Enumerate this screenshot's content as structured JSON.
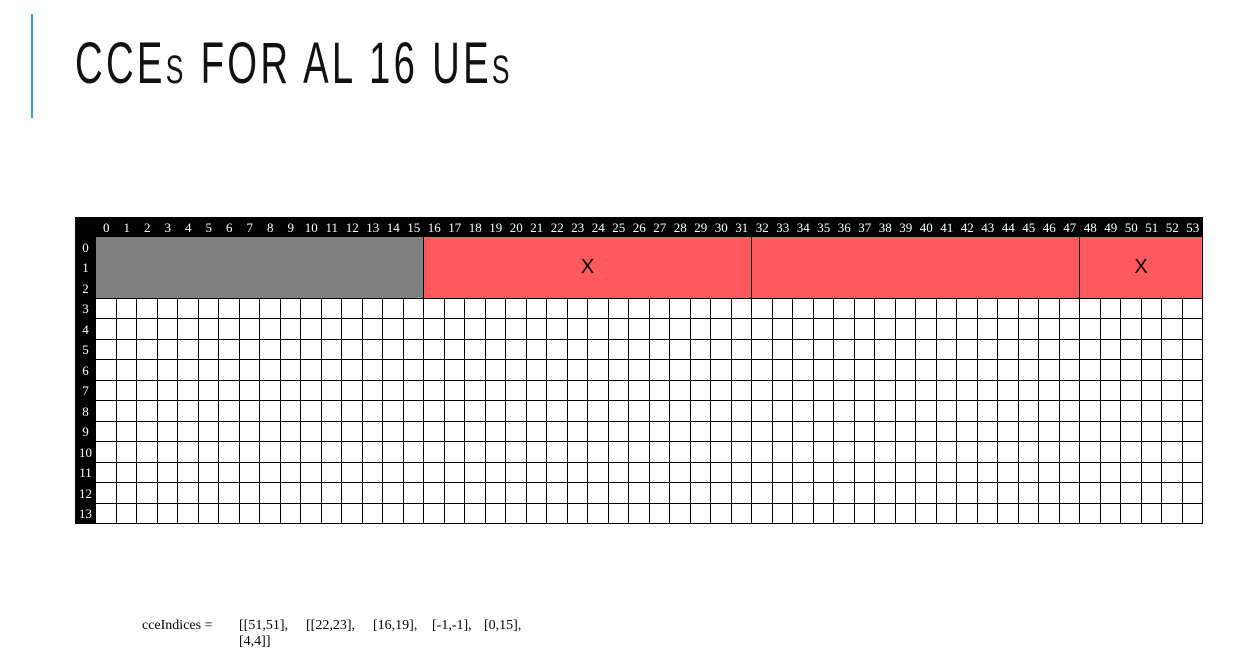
{
  "slide": {
    "title_parts": [
      "C",
      "CE",
      "S",
      " FOR AL 16 UE",
      "S"
    ],
    "accent_color": "#2aa7c5"
  },
  "grid": {
    "columns": 54,
    "rows": 14,
    "header_bg": "#000000",
    "header_fg": "#ffffff",
    "blocks": [
      {
        "row_start": 0,
        "row_end": 2,
        "col_start": 0,
        "col_end": 15,
        "color": "#808080",
        "label": ""
      },
      {
        "row_start": 0,
        "row_end": 2,
        "col_start": 16,
        "col_end": 31,
        "color": "#fe5a5e",
        "label": "X"
      },
      {
        "row_start": 0,
        "row_end": 2,
        "col_start": 32,
        "col_end": 47,
        "color": "#fe5a5e",
        "label": ""
      },
      {
        "row_start": 0,
        "row_end": 2,
        "col_start": 48,
        "col_end": 53,
        "color": "#fe5a5e",
        "label": "X"
      }
    ]
  },
  "caption": {
    "label": "cceIndices =",
    "values": [
      "[[51,51],",
      "[[22,23],",
      "[16,19],",
      "[-1,-1],",
      "[0,15],",
      "[4,4]]"
    ]
  }
}
